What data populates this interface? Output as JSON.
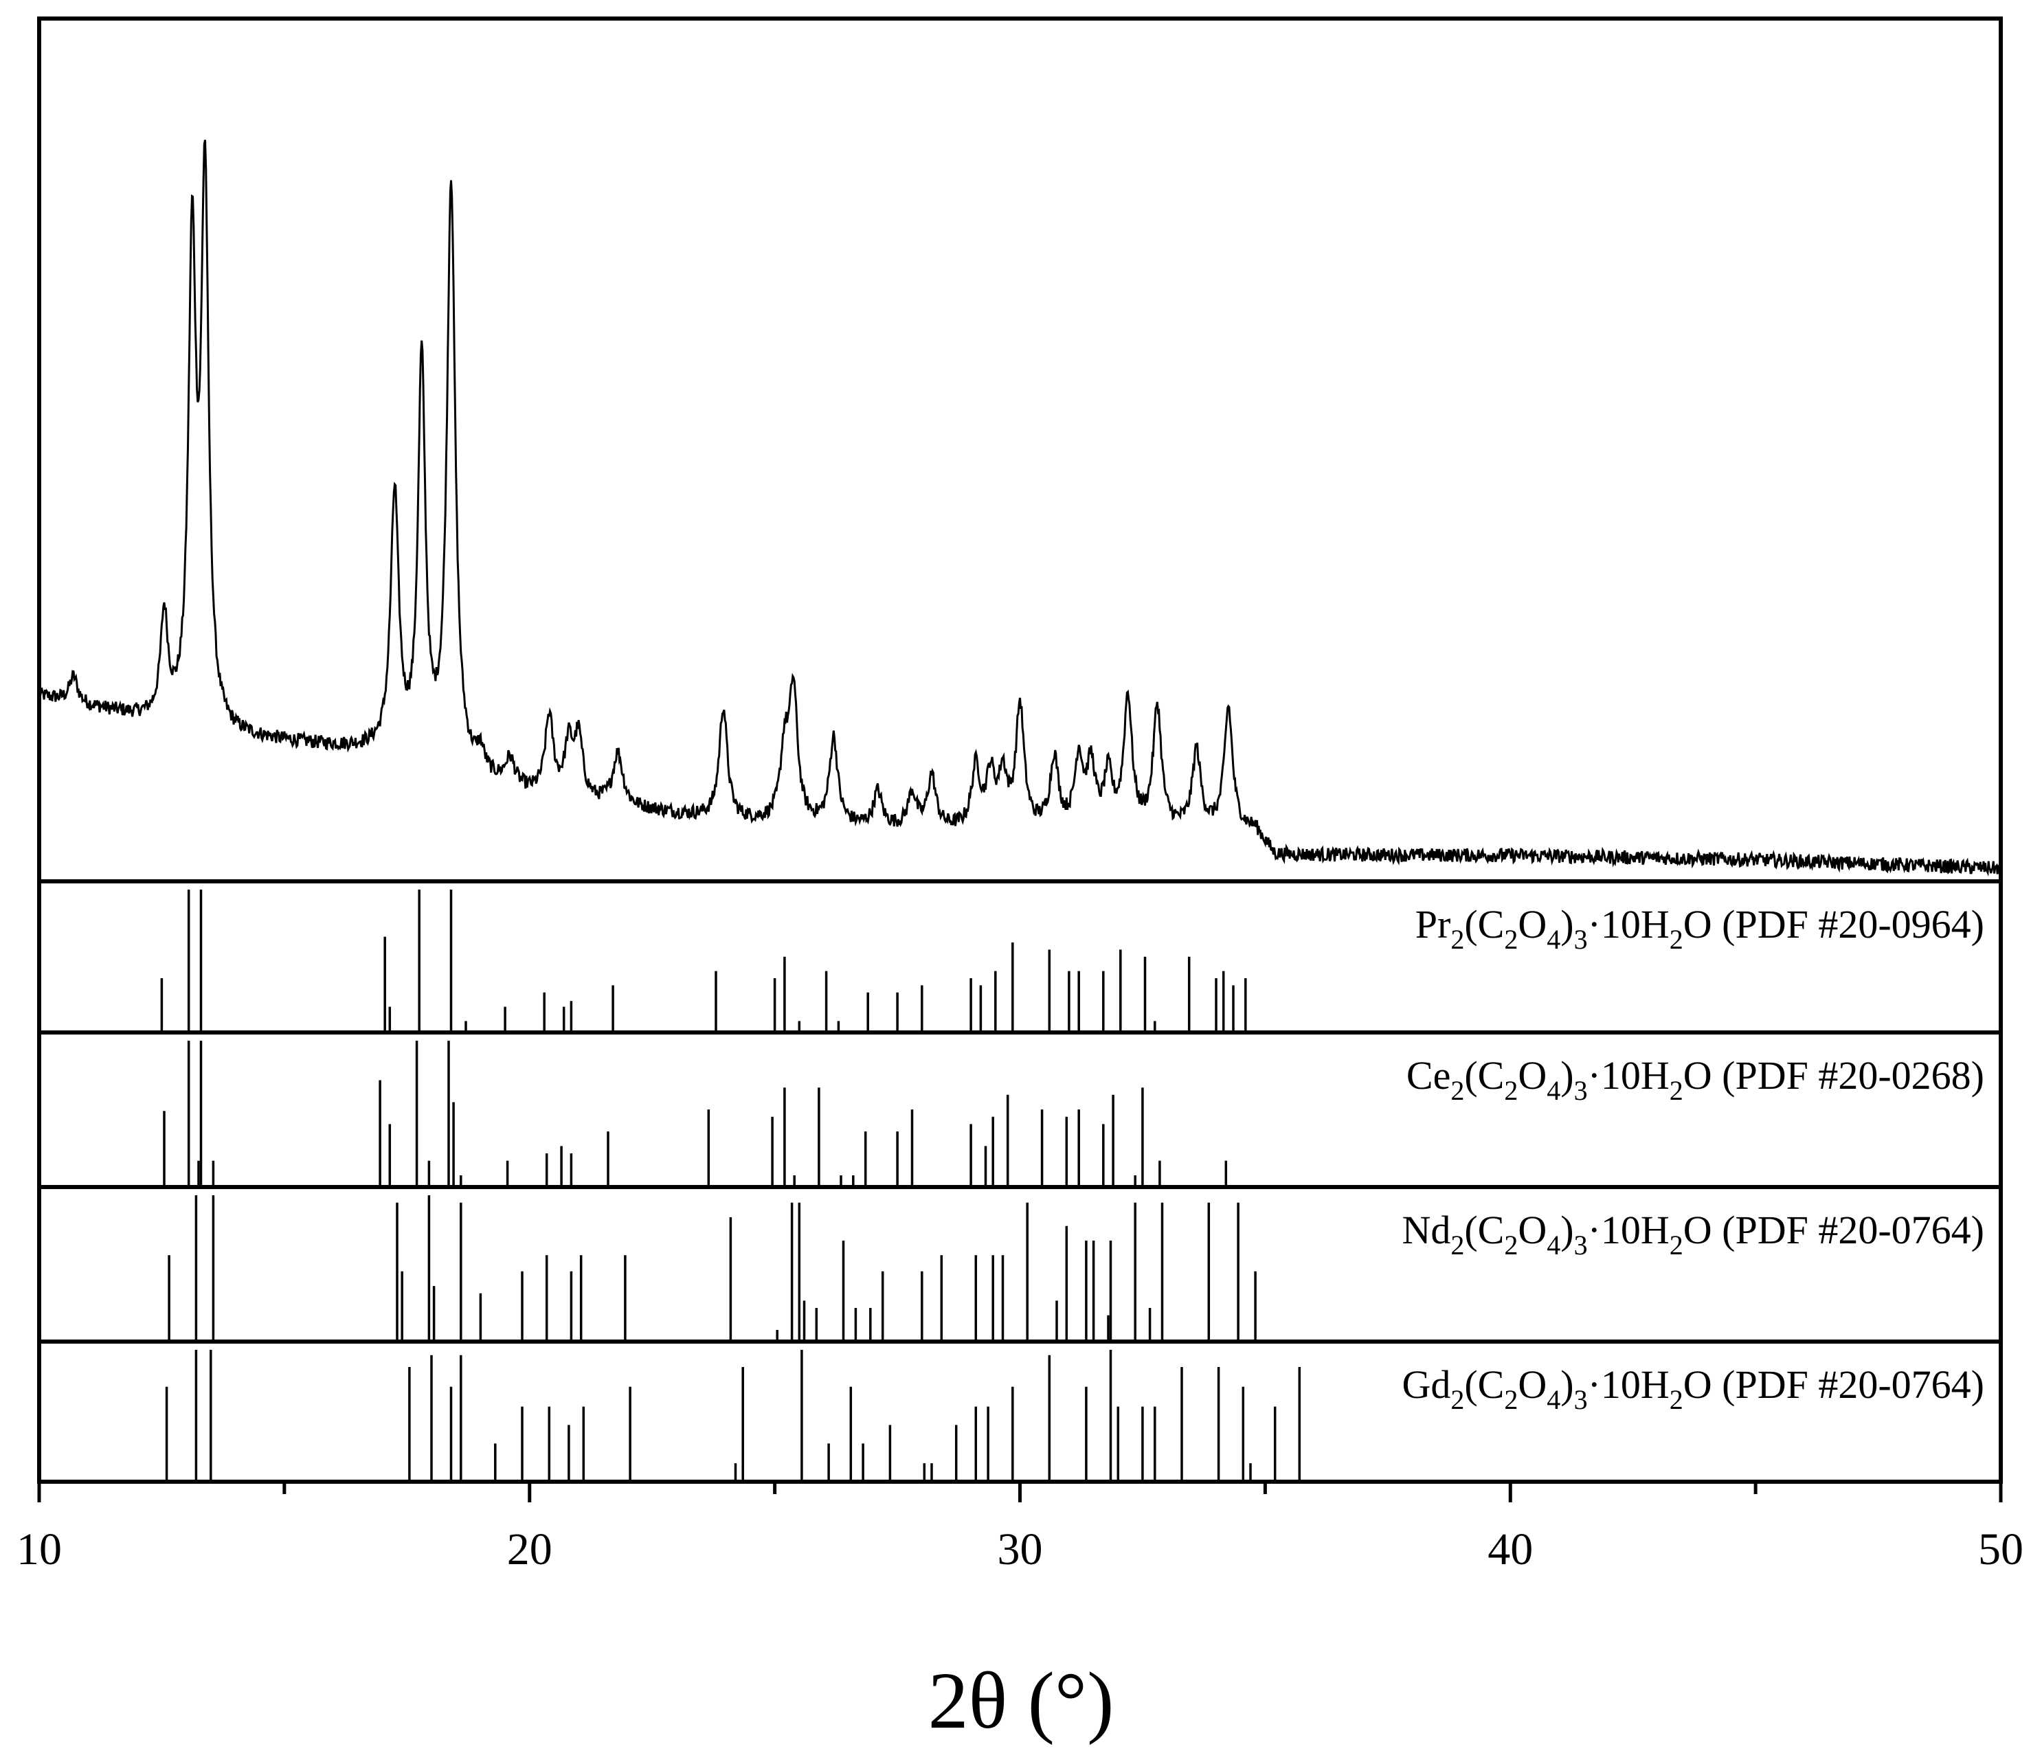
{
  "chart_data": {
    "type": "line",
    "xlabel": "2θ (°)",
    "xlim": [
      10,
      50
    ],
    "xticks": [
      10,
      20,
      30,
      40,
      50
    ],
    "grid": false,
    "line_color": "#000000",
    "measured_series": {
      "peaks": [
        {
          "x": 10.7,
          "h": 0.03,
          "w": 0.1
        },
        {
          "x": 12.55,
          "h": 0.12,
          "w": 0.09
        },
        {
          "x": 13.12,
          "h": 0.55,
          "w": 0.09
        },
        {
          "x": 13.38,
          "h": 0.63,
          "w": 0.09
        },
        {
          "x": 17.25,
          "h": 0.3,
          "w": 0.1
        },
        {
          "x": 17.8,
          "h": 0.46,
          "w": 0.09
        },
        {
          "x": 18.4,
          "h": 0.68,
          "w": 0.1
        },
        {
          "x": 19.0,
          "h": 0.025,
          "w": 0.1
        },
        {
          "x": 19.6,
          "h": 0.03,
          "w": 0.12
        },
        {
          "x": 20.4,
          "h": 0.09,
          "w": 0.1
        },
        {
          "x": 20.8,
          "h": 0.06,
          "w": 0.1
        },
        {
          "x": 21.0,
          "h": 0.07,
          "w": 0.1
        },
        {
          "x": 21.8,
          "h": 0.06,
          "w": 0.12
        },
        {
          "x": 23.95,
          "h": 0.13,
          "w": 0.1
        },
        {
          "x": 25.2,
          "h": 0.08,
          "w": 0.1
        },
        {
          "x": 25.38,
          "h": 0.15,
          "w": 0.1
        },
        {
          "x": 26.2,
          "h": 0.1,
          "w": 0.1
        },
        {
          "x": 27.1,
          "h": 0.04,
          "w": 0.1
        },
        {
          "x": 27.8,
          "h": 0.04,
          "w": 0.1
        },
        {
          "x": 28.2,
          "h": 0.06,
          "w": 0.1
        },
        {
          "x": 29.1,
          "h": 0.07,
          "w": 0.1
        },
        {
          "x": 29.4,
          "h": 0.06,
          "w": 0.1
        },
        {
          "x": 29.65,
          "h": 0.06,
          "w": 0.1
        },
        {
          "x": 30.0,
          "h": 0.14,
          "w": 0.1
        },
        {
          "x": 30.7,
          "h": 0.08,
          "w": 0.1
        },
        {
          "x": 31.2,
          "h": 0.08,
          "w": 0.1
        },
        {
          "x": 31.45,
          "h": 0.07,
          "w": 0.1
        },
        {
          "x": 31.8,
          "h": 0.06,
          "w": 0.1
        },
        {
          "x": 32.2,
          "h": 0.15,
          "w": 0.1
        },
        {
          "x": 32.8,
          "h": 0.14,
          "w": 0.1
        },
        {
          "x": 33.6,
          "h": 0.09,
          "w": 0.1
        },
        {
          "x": 34.25,
          "h": 0.14,
          "w": 0.1
        }
      ],
      "baseline": [
        [
          10,
          0.215
        ],
        [
          13.5,
          0.17
        ],
        [
          16.8,
          0.15
        ],
        [
          20,
          0.1
        ],
        [
          24,
          0.07
        ],
        [
          28,
          0.06
        ],
        [
          34.8,
          0.06
        ],
        [
          35.2,
          0.03
        ],
        [
          40,
          0.03
        ],
        [
          45,
          0.025
        ],
        [
          50,
          0.015
        ]
      ]
    },
    "reference_patterns": [
      {
        "name": "Pr2(C2O4)3·10H2O (PDF #20-0964)",
        "legend": {
          "base": "Pr",
          "sub1": "2",
          "mid1": "(C",
          "sub2": "2",
          "mid2": "O",
          "sub3": "4",
          "mid3": ")",
          "sub4": "3",
          "mid4": "·10H",
          "sub5": "2",
          "tail": "O (PDF #20-0964)"
        },
        "peaks": [
          [
            12.5,
            0.38
          ],
          [
            13.05,
            1.0
          ],
          [
            13.3,
            1.0
          ],
          [
            17.05,
            0.67
          ],
          [
            17.15,
            0.18
          ],
          [
            17.75,
            1.0
          ],
          [
            18.4,
            1.0
          ],
          [
            18.7,
            0.08
          ],
          [
            19.5,
            0.18
          ],
          [
            20.3,
            0.28
          ],
          [
            20.7,
            0.18
          ],
          [
            20.85,
            0.22
          ],
          [
            21.7,
            0.33
          ],
          [
            23.8,
            0.43
          ],
          [
            25.0,
            0.38
          ],
          [
            25.2,
            0.53
          ],
          [
            25.5,
            0.08
          ],
          [
            26.05,
            0.43
          ],
          [
            26.3,
            0.08
          ],
          [
            26.9,
            0.28
          ],
          [
            27.5,
            0.28
          ],
          [
            28.0,
            0.33
          ],
          [
            29.0,
            0.38
          ],
          [
            29.2,
            0.33
          ],
          [
            29.5,
            0.43
          ],
          [
            29.85,
            0.63
          ],
          [
            30.6,
            0.58
          ],
          [
            31.0,
            0.43
          ],
          [
            31.2,
            0.43
          ],
          [
            31.7,
            0.43
          ],
          [
            32.05,
            0.58
          ],
          [
            32.55,
            0.53
          ],
          [
            32.75,
            0.08
          ],
          [
            33.45,
            0.53
          ],
          [
            34.0,
            0.38
          ],
          [
            34.15,
            0.43
          ],
          [
            34.35,
            0.33
          ],
          [
            34.6,
            0.38
          ]
        ]
      },
      {
        "name": "Ce2(C2O4)3·10H2O (PDF #20-0268)",
        "legend": {
          "base": "Ce",
          "sub1": "2",
          "mid1": "(C",
          "sub2": "2",
          "mid2": "O",
          "sub3": "4",
          "mid3": ")",
          "sub4": "3",
          "mid4": "·10H",
          "sub5": "2",
          "tail": "O (PDF #20-0268)"
        },
        "peaks": [
          [
            12.55,
            0.52
          ],
          [
            13.05,
            1.0
          ],
          [
            13.25,
            0.18
          ],
          [
            13.3,
            1.0
          ],
          [
            13.55,
            0.18
          ],
          [
            16.95,
            0.73
          ],
          [
            17.15,
            0.43
          ],
          [
            17.7,
            1.0
          ],
          [
            17.95,
            0.18
          ],
          [
            18.35,
            1.0
          ],
          [
            18.45,
            0.58
          ],
          [
            18.6,
            0.08
          ],
          [
            19.55,
            0.18
          ],
          [
            20.35,
            0.23
          ],
          [
            20.65,
            0.28
          ],
          [
            20.85,
            0.23
          ],
          [
            21.6,
            0.38
          ],
          [
            23.65,
            0.53
          ],
          [
            24.95,
            0.48
          ],
          [
            25.2,
            0.68
          ],
          [
            25.4,
            0.08
          ],
          [
            25.9,
            0.68
          ],
          [
            26.35,
            0.08
          ],
          [
            26.6,
            0.08
          ],
          [
            26.85,
            0.38
          ],
          [
            27.5,
            0.38
          ],
          [
            27.8,
            0.53
          ],
          [
            29.0,
            0.43
          ],
          [
            29.3,
            0.28
          ],
          [
            29.45,
            0.48
          ],
          [
            29.75,
            0.63
          ],
          [
            30.45,
            0.53
          ],
          [
            30.95,
            0.48
          ],
          [
            31.2,
            0.53
          ],
          [
            31.7,
            0.43
          ],
          [
            31.9,
            0.63
          ],
          [
            32.35,
            0.08
          ],
          [
            32.5,
            0.68
          ],
          [
            32.85,
            0.18
          ],
          [
            34.2,
            0.18
          ]
        ]
      },
      {
        "name": "Nd2(C2O4)3·10H2O (PDF #20-0764)",
        "legend": {
          "base": "Nd",
          "sub1": "2",
          "mid1": "(C",
          "sub2": "2",
          "mid2": "O",
          "sub3": "4",
          "mid3": ")",
          "sub4": "3",
          "mid4": "·10H",
          "sub5": "2",
          "tail": "O (PDF #20-0764)"
        },
        "peaks": [
          [
            12.65,
            0.59
          ],
          [
            13.2,
            1.0
          ],
          [
            13.55,
            1.0
          ],
          [
            17.3,
            0.95
          ],
          [
            17.4,
            0.48
          ],
          [
            17.95,
            1.0
          ],
          [
            18.05,
            0.38
          ],
          [
            18.6,
            0.95
          ],
          [
            19.0,
            0.33
          ],
          [
            19.85,
            0.48
          ],
          [
            20.35,
            0.59
          ],
          [
            20.85,
            0.48
          ],
          [
            21.05,
            0.59
          ],
          [
            21.95,
            0.59
          ],
          [
            24.1,
            0.85
          ],
          [
            25.05,
            0.08
          ],
          [
            25.35,
            0.95
          ],
          [
            25.5,
            0.95
          ],
          [
            25.6,
            0.28
          ],
          [
            25.85,
            0.23
          ],
          [
            26.4,
            0.69
          ],
          [
            26.65,
            0.23
          ],
          [
            26.95,
            0.23
          ],
          [
            27.2,
            0.48
          ],
          [
            28.0,
            0.48
          ],
          [
            28.4,
            0.59
          ],
          [
            29.1,
            0.59
          ],
          [
            29.45,
            0.59
          ],
          [
            29.65,
            0.59
          ],
          [
            30.15,
            0.95
          ],
          [
            30.75,
            0.28
          ],
          [
            30.95,
            0.79
          ],
          [
            31.35,
            0.69
          ],
          [
            31.5,
            0.69
          ],
          [
            31.85,
            0.69
          ],
          [
            31.8,
            0.18
          ],
          [
            32.35,
            0.95
          ],
          [
            32.65,
            0.23
          ],
          [
            32.9,
            0.95
          ],
          [
            33.85,
            0.95
          ],
          [
            34.45,
            0.95
          ],
          [
            34.8,
            0.48
          ]
        ]
      },
      {
        "name": "Gd2(C2O4)3·10H2O (PDF #20-0764)",
        "legend": {
          "base": "Gd",
          "sub1": "2",
          "mid1": "(C",
          "sub2": "2",
          "mid2": "O",
          "sub3": "4",
          "mid3": ")",
          "sub4": "3",
          "mid4": "·10H",
          "sub5": "2",
          "tail": "O (PDF #20-0764)"
        },
        "peaks": [
          [
            12.6,
            0.72
          ],
          [
            13.2,
            1.0
          ],
          [
            13.5,
            1.0
          ],
          [
            17.55,
            0.87
          ],
          [
            18.0,
            0.96
          ],
          [
            18.4,
            0.72
          ],
          [
            18.6,
            0.96
          ],
          [
            19.3,
            0.29
          ],
          [
            19.85,
            0.57
          ],
          [
            20.4,
            0.57
          ],
          [
            20.8,
            0.43
          ],
          [
            21.1,
            0.57
          ],
          [
            22.05,
            0.72
          ],
          [
            24.2,
            0.14
          ],
          [
            24.35,
            0.87
          ],
          [
            25.55,
            1.0
          ],
          [
            26.1,
            0.29
          ],
          [
            26.55,
            0.72
          ],
          [
            26.8,
            0.29
          ],
          [
            27.35,
            0.43
          ],
          [
            28.05,
            0.14
          ],
          [
            28.2,
            0.14
          ],
          [
            28.7,
            0.43
          ],
          [
            29.1,
            0.57
          ],
          [
            29.35,
            0.57
          ],
          [
            29.85,
            0.72
          ],
          [
            30.6,
            0.96
          ],
          [
            31.35,
            0.72
          ],
          [
            31.85,
            1.0
          ],
          [
            32.0,
            0.57
          ],
          [
            32.5,
            0.57
          ],
          [
            32.75,
            0.57
          ],
          [
            33.3,
            0.87
          ],
          [
            34.05,
            0.87
          ],
          [
            34.55,
            0.72
          ],
          [
            34.7,
            0.14
          ],
          [
            35.2,
            0.57
          ],
          [
            35.7,
            0.87
          ]
        ]
      }
    ]
  }
}
